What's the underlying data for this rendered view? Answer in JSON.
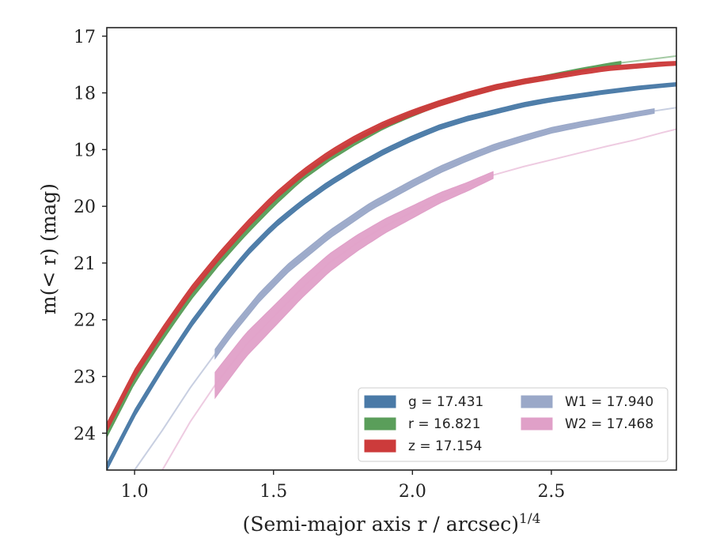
{
  "chart_data": {
    "type": "line",
    "xlabel": "(Semi-major axis r / arcsec)",
    "xlabel_exponent": "1/4",
    "ylabel": "m(< r) (mag)",
    "xlim": [
      0.9,
      2.95
    ],
    "ylim": [
      24.65,
      16.85
    ],
    "y_inverted": true,
    "xticks": [
      1.0,
      1.5,
      2.0,
      2.5
    ],
    "xtick_labels": [
      "1.0",
      "1.5",
      "2.0",
      "2.5"
    ],
    "yticks": [
      17,
      18,
      19,
      20,
      21,
      22,
      23,
      24
    ],
    "ytick_labels": [
      "17",
      "18",
      "19",
      "20",
      "21",
      "22",
      "23",
      "24"
    ],
    "grid": false,
    "legend_placement": "lower-right",
    "series": [
      {
        "name": "g = 17.431",
        "color": "#4a7aa7",
        "band_width": [
          0.12,
          0.06
        ],
        "points": [
          [
            0.9,
            24.6
          ],
          [
            1.0,
            23.65
          ],
          [
            1.1,
            22.85
          ],
          [
            1.2,
            22.1
          ],
          [
            1.3,
            21.45
          ],
          [
            1.4,
            20.85
          ],
          [
            1.5,
            20.35
          ],
          [
            1.6,
            19.95
          ],
          [
            1.7,
            19.6
          ],
          [
            1.8,
            19.3
          ],
          [
            1.9,
            19.03
          ],
          [
            2.0,
            18.8
          ],
          [
            2.1,
            18.6
          ],
          [
            2.2,
            18.45
          ],
          [
            2.3,
            18.33
          ],
          [
            2.4,
            18.21
          ],
          [
            2.5,
            18.12
          ],
          [
            2.6,
            18.05
          ],
          [
            2.7,
            17.98
          ],
          [
            2.8,
            17.92
          ],
          [
            2.9,
            17.87
          ],
          [
            2.95,
            17.85
          ]
        ]
      },
      {
        "name": "r = 16.821",
        "color": "#5a9e5a",
        "band_width": [
          0.14,
          0.05
        ],
        "points": [
          [
            0.9,
            24.0
          ],
          [
            1.0,
            23.05
          ],
          [
            1.1,
            22.3
          ],
          [
            1.2,
            21.6
          ],
          [
            1.3,
            21.0
          ],
          [
            1.4,
            20.45
          ],
          [
            1.5,
            19.95
          ],
          [
            1.6,
            19.5
          ],
          [
            1.7,
            19.15
          ],
          [
            1.8,
            18.85
          ],
          [
            1.9,
            18.58
          ],
          [
            2.0,
            18.37
          ],
          [
            2.1,
            18.18
          ],
          [
            2.2,
            18.03
          ],
          [
            2.3,
            17.9
          ],
          [
            2.4,
            17.8
          ],
          [
            2.5,
            17.7
          ],
          [
            2.6,
            17.6
          ],
          [
            2.7,
            17.51
          ],
          [
            2.75,
            17.47
          ],
          [
            2.8,
            17.44
          ],
          [
            2.9,
            17.38
          ],
          [
            2.95,
            17.35
          ]
        ]
      },
      {
        "name": "z = 17.154",
        "color": "#cc3b3b",
        "band_width": [
          0.14,
          0.07
        ],
        "points": [
          [
            0.9,
            23.9
          ],
          [
            1.0,
            22.95
          ],
          [
            1.1,
            22.2
          ],
          [
            1.2,
            21.5
          ],
          [
            1.3,
            20.9
          ],
          [
            1.4,
            20.35
          ],
          [
            1.5,
            19.85
          ],
          [
            1.6,
            19.43
          ],
          [
            1.7,
            19.08
          ],
          [
            1.8,
            18.79
          ],
          [
            1.9,
            18.55
          ],
          [
            2.0,
            18.35
          ],
          [
            2.1,
            18.18
          ],
          [
            2.2,
            18.03
          ],
          [
            2.3,
            17.9
          ],
          [
            2.4,
            17.8
          ],
          [
            2.5,
            17.72
          ],
          [
            2.6,
            17.64
          ],
          [
            2.7,
            17.57
          ],
          [
            2.8,
            17.53
          ],
          [
            2.9,
            17.49
          ],
          [
            2.95,
            17.48
          ]
        ]
      },
      {
        "name": "W1 = 17.940",
        "color": "#9aa8c8",
        "band_width": [
          0.16,
          0.08
        ],
        "points": [
          [
            1.0,
            24.65
          ],
          [
            1.1,
            23.95
          ],
          [
            1.2,
            23.2
          ],
          [
            1.29,
            22.6
          ],
          [
            1.35,
            22.2
          ],
          [
            1.45,
            21.6
          ],
          [
            1.55,
            21.1
          ],
          [
            1.7,
            20.5
          ],
          [
            1.85,
            20.0
          ],
          [
            2.0,
            19.6
          ],
          [
            2.1,
            19.35
          ],
          [
            2.2,
            19.14
          ],
          [
            2.3,
            18.95
          ],
          [
            2.4,
            18.8
          ],
          [
            2.5,
            18.66
          ],
          [
            2.6,
            18.56
          ],
          [
            2.7,
            18.47
          ],
          [
            2.8,
            18.38
          ],
          [
            2.87,
            18.32
          ],
          [
            2.95,
            18.26
          ]
        ]
      },
      {
        "name": "W2 = 17.468",
        "color": "#e0a0c8",
        "band_width": [
          0.45,
          0.12
        ],
        "points": [
          [
            1.1,
            24.65
          ],
          [
            1.2,
            23.8
          ],
          [
            1.29,
            23.15
          ],
          [
            1.4,
            22.45
          ],
          [
            1.5,
            21.95
          ],
          [
            1.6,
            21.45
          ],
          [
            1.7,
            21.0
          ],
          [
            1.8,
            20.65
          ],
          [
            1.9,
            20.35
          ],
          [
            2.0,
            20.1
          ],
          [
            2.1,
            19.85
          ],
          [
            2.2,
            19.65
          ],
          [
            2.29,
            19.45
          ],
          [
            2.4,
            19.3
          ],
          [
            2.5,
            19.18
          ],
          [
            2.6,
            19.06
          ],
          [
            2.7,
            18.94
          ],
          [
            2.8,
            18.83
          ],
          [
            2.9,
            18.7
          ],
          [
            2.95,
            18.64
          ]
        ]
      }
    ],
    "measured_ranges": [
      [
        0.9,
        2.95
      ],
      [
        0.9,
        2.75
      ],
      [
        0.9,
        2.95
      ],
      [
        1.29,
        2.87
      ],
      [
        1.29,
        2.29
      ]
    ]
  }
}
